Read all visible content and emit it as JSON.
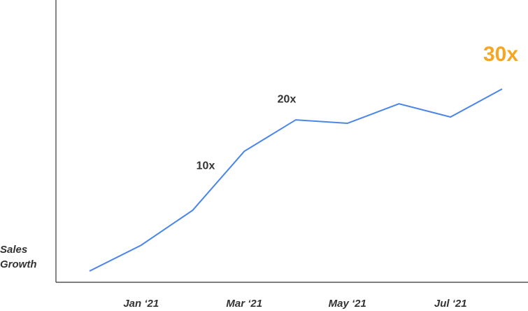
{
  "chart_data": {
    "type": "line",
    "y_label": "Sales Growth",
    "categories": [
      null,
      "Jan ‘21",
      null,
      "Mar ‘21",
      null,
      "May ‘21",
      null,
      "Jul ‘21",
      null
    ],
    "series": [
      {
        "color": "#4a86e8",
        "values": [
          -28,
          -19.8,
          -8.7,
          10,
          20,
          18.9,
          25.1,
          20.9,
          29.8
        ]
      }
    ],
    "annotations": [
      {
        "text": "10x",
        "value": 10,
        "color": "#333333"
      },
      {
        "text": "20x",
        "value": 20,
        "color": "#333333"
      },
      {
        "text": "30x",
        "value": 30,
        "color": "#f5a623"
      }
    ]
  }
}
